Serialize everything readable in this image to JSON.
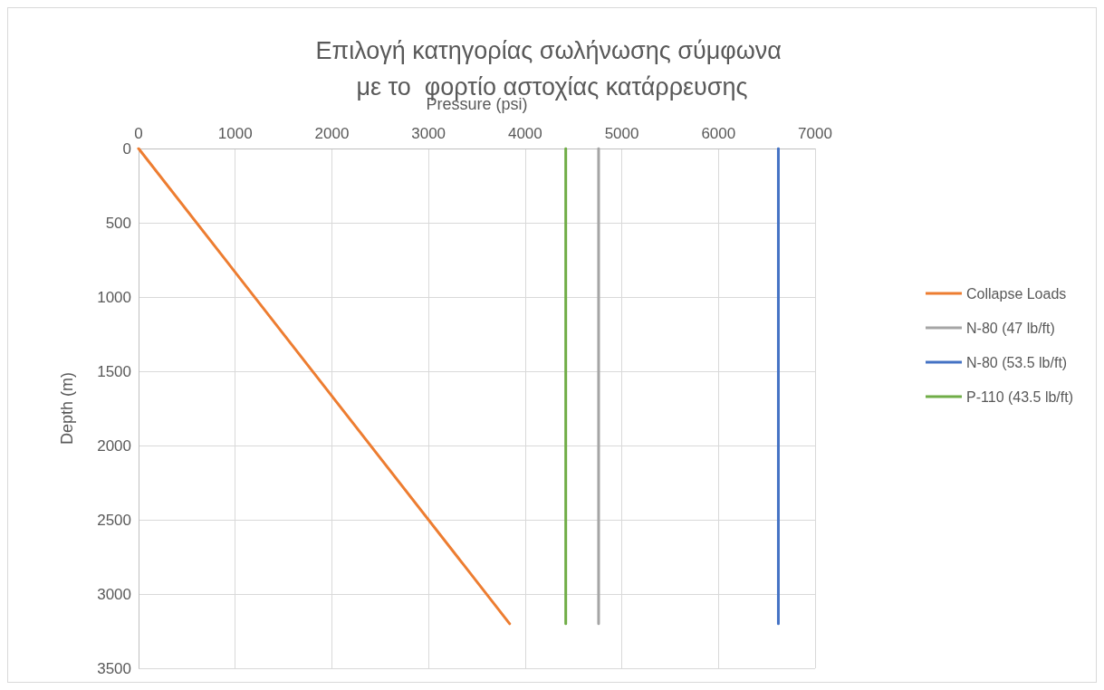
{
  "chart_data": {
    "type": "line",
    "title": "Επιλογή κατηγορίας σωλήνωσης σύμφωνα με το  φορτίο αστοχίας κατάρρευσης",
    "xlabel": "Pressure (psi)",
    "ylabel": "Depth (m)",
    "xlim": [
      0,
      7000
    ],
    "xticks": [
      0,
      1000,
      2000,
      3000,
      4000,
      5000,
      6000,
      7000
    ],
    "ylim": [
      3500,
      0
    ],
    "yticks": [
      0,
      500,
      1000,
      1500,
      2000,
      2500,
      3000,
      3500
    ],
    "grid": true,
    "legend": "right",
    "marker": "none",
    "line_style": "solid",
    "series": [
      {
        "name": "Collapse Loads",
        "color": "#ed7d31",
        "x": [
          0,
          3840
        ],
        "values": [
          0,
          3200
        ]
      },
      {
        "name": "N-80 (47 lb/ft)",
        "color": "#a5a5a5",
        "x": [
          4760,
          4760
        ],
        "values": [
          0,
          3200
        ]
      },
      {
        "name": "N-80 (53.5 lb/ft)",
        "color": "#4472c4",
        "x": [
          6620,
          6620
        ],
        "values": [
          0,
          3200
        ]
      },
      {
        "name": "P-110 (43.5 lb/ft)",
        "color": "#70ad47",
        "x": [
          4420,
          4420
        ],
        "values": [
          0,
          3200
        ]
      }
    ]
  }
}
